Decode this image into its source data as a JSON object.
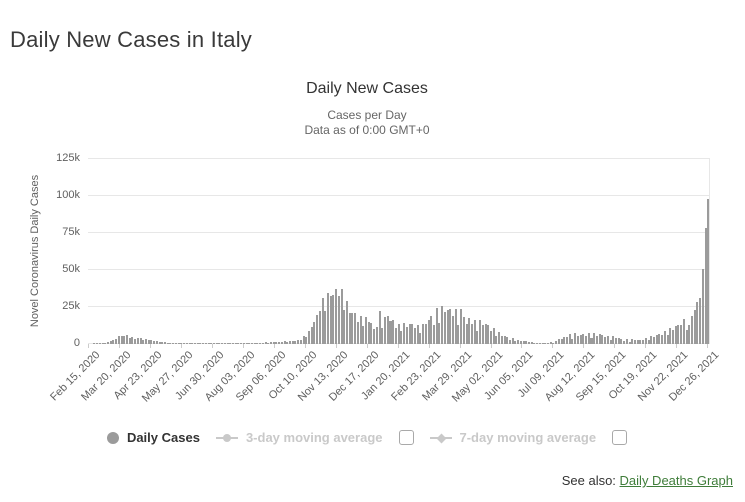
{
  "page": {
    "title": "Daily New Cases in Italy",
    "see_also": {
      "prefix": "See also:",
      "link_label": "Daily Deaths Graph"
    }
  },
  "chart": {
    "title": "Daily New Cases",
    "subtitle_line1": "Cases per Day",
    "subtitle_line2": "Data as of 0:00 GMT+0",
    "y_axis_title": "Novel Coronavirus Daily Cases",
    "legend": {
      "daily_cases_label": "Daily Cases",
      "ma3_label": "3-day moving average",
      "ma7_label": "7-day moving average"
    },
    "colors": {
      "bar": "#9b9b9b",
      "grid": "#e7e7e7",
      "axis_label": "#606060",
      "title": "#333333",
      "subtitle": "#666666",
      "legend_inactive": "#c9c9c9",
      "link_green": "#3f7d3a"
    }
  },
  "chart_data": {
    "type": "bar",
    "title": "Daily New Cases",
    "subtitle": "Cases per Day — Data as of 0:00 GMT+0",
    "xlabel": "",
    "ylabel": "Novel Coronavirus Daily Cases",
    "ylim": [
      0,
      125000
    ],
    "y_tick_labels": [
      "0",
      "25k",
      "50k",
      "75k",
      "100k",
      "125k"
    ],
    "y_tick_values": [
      0,
      25000,
      50000,
      75000,
      100000,
      125000
    ],
    "grid": "horizontal",
    "legend_position": "bottom",
    "series_name": "Daily Cases",
    "x_tick_labels": [
      "Feb 15, 2020",
      "Mar 20, 2020",
      "Apr 23, 2020",
      "May 27, 2020",
      "Jun 30, 2020",
      "Aug 03, 2020",
      "Sep 06, 2020",
      "Oct 10, 2020",
      "Nov 13, 2020",
      "Dec 17, 2020",
      "Jan 20, 2021",
      "Feb 23, 2021",
      "Mar 29, 2021",
      "May 02, 2021",
      "Jun 05, 2021",
      "Jul 09, 2021",
      "Aug 12, 2021",
      "Sep 15, 2021",
      "Oct 19, 2021",
      "Nov 22, 2021",
      "Dec 26, 2021"
    ],
    "tick_interval_days": 34,
    "total_days": 683,
    "sampling": "values estimated from chart at ~3-day intervals, Feb 15 2020 through Dec 29 2021",
    "values": [
      0,
      0,
      60,
      150,
      400,
      570,
      660,
      1250,
      1800,
      2550,
      3200,
      5300,
      5560,
      5210,
      5970,
      4050,
      4600,
      3600,
      4200,
      4090,
      2670,
      3490,
      2730,
      3020,
      1740,
      2090,
      1390,
      1440,
      1080,
      890,
      790,
      450,
      640,
      530,
      400,
      420,
      200,
      520,
      280,
      380,
      340,
      330,
      260,
      120,
      260,
      130,
      200,
      190,
      140,
      190,
      110,
      230,
      190,
      310,
      250,
      290,
      240,
      190,
      550,
      260,
      520,
      480,
      640,
      950,
      880,
      1410,
      1000,
      1400,
      1300,
      1430,
      1500,
      1230,
      1910,
      1350,
      1790,
      1770,
      1850,
      2840,
      2680,
      5370,
      4620,
      8800,
      11700,
      15200,
      19650,
      21990,
      31080,
      22250,
      34500,
      32610,
      32960,
      37250,
      32190,
      37240,
      22930,
      29000,
      20640,
      20710,
      21050,
      14840,
      18730,
      12030,
      18230,
      15100,
      14520,
      10400,
      11210,
      22210,
      10800,
      18420,
      18630,
      15770,
      16310,
      10500,
      13630,
      8560,
      14370,
      11250,
      13190,
      13440,
      10630,
      12950,
      7350,
      13760,
      13450,
      16420,
      18920,
      13110,
      24040,
      13900,
      25670,
      21320,
      23060,
      23830,
      18770,
      23990,
      12910,
      23650,
      18030,
      13710,
      17570,
      13450,
      15940,
      8860,
      16230,
      13160,
      13400,
      12960,
      9110,
      10550,
      5080,
      8080,
      5750,
      5500,
      4720,
      2490,
      3990,
      1820,
      2900,
      2270,
      2200,
      1720,
      1260,
      1200,
      700,
      1010,
      780,
      780,
      700,
      900,
      1390,
      1010,
      2150,
      3120,
      3560,
      4740,
      4520,
      6620,
      3190,
      7230,
      5740,
      6000,
      6670,
      5270,
      7220,
      4170,
      7220,
      5320,
      6500,
      6160,
      4720,
      5620,
      2970,
      5120,
      3840,
      3930,
      3520,
      2060,
      3400,
      1610,
      3240,
      2750,
      2670,
      2980,
      2700,
      3790,
      2530,
      5330,
      4530,
      5900,
      6760,
      6030,
      8570,
      5820,
      10640,
      9710,
      12450,
      12880,
      12760,
      17030,
      9500,
      12530,
      19220,
      23190,
      28060,
      30800,
      50600,
      78300,
      98000
    ]
  }
}
